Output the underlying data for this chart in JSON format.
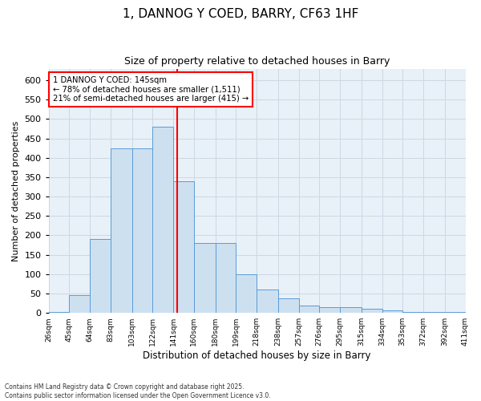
{
  "title_line1": "1, DANNOG Y COED, BARRY, CF63 1HF",
  "title_line2": "Size of property relative to detached houses in Barry",
  "xlabel": "Distribution of detached houses by size in Barry",
  "ylabel": "Number of detached properties",
  "bin_edges": [
    26,
    45,
    64,
    83,
    103,
    122,
    141,
    160,
    180,
    199,
    218,
    238,
    257,
    276,
    295,
    315,
    334,
    353,
    372,
    392,
    411
  ],
  "bar_heights": [
    2,
    45,
    190,
    425,
    425,
    480,
    340,
    180,
    180,
    100,
    60,
    38,
    20,
    15,
    15,
    10,
    7,
    2,
    2,
    2
  ],
  "bar_facecolor": "#cde0f0",
  "bar_edgecolor": "#5b9bd5",
  "vline_x": 145,
  "vline_color": "red",
  "annotation_text": "1 DANNOG Y COED: 145sqm\n← 78% of detached houses are smaller (1,511)\n21% of semi-detached houses are larger (415) →",
  "annotation_box_facecolor": "white",
  "annotation_box_edgecolor": "red",
  "grid_color": "#cdd8e3",
  "bg_color": "#e8f0f8",
  "footer_text": "Contains HM Land Registry data © Crown copyright and database right 2025.\nContains public sector information licensed under the Open Government Licence v3.0.",
  "ylim": [
    0,
    630
  ],
  "yticks": [
    0,
    50,
    100,
    150,
    200,
    250,
    300,
    350,
    400,
    450,
    500,
    550,
    600
  ],
  "tick_labels": [
    "26sqm",
    "45sqm",
    "64sqm",
    "83sqm",
    "103sqm",
    "122sqm",
    "141sqm",
    "160sqm",
    "180sqm",
    "199sqm",
    "218sqm",
    "238sqm",
    "257sqm",
    "276sqm",
    "295sqm",
    "315sqm",
    "334sqm",
    "353sqm",
    "372sqm",
    "392sqm",
    "411sqm"
  ]
}
